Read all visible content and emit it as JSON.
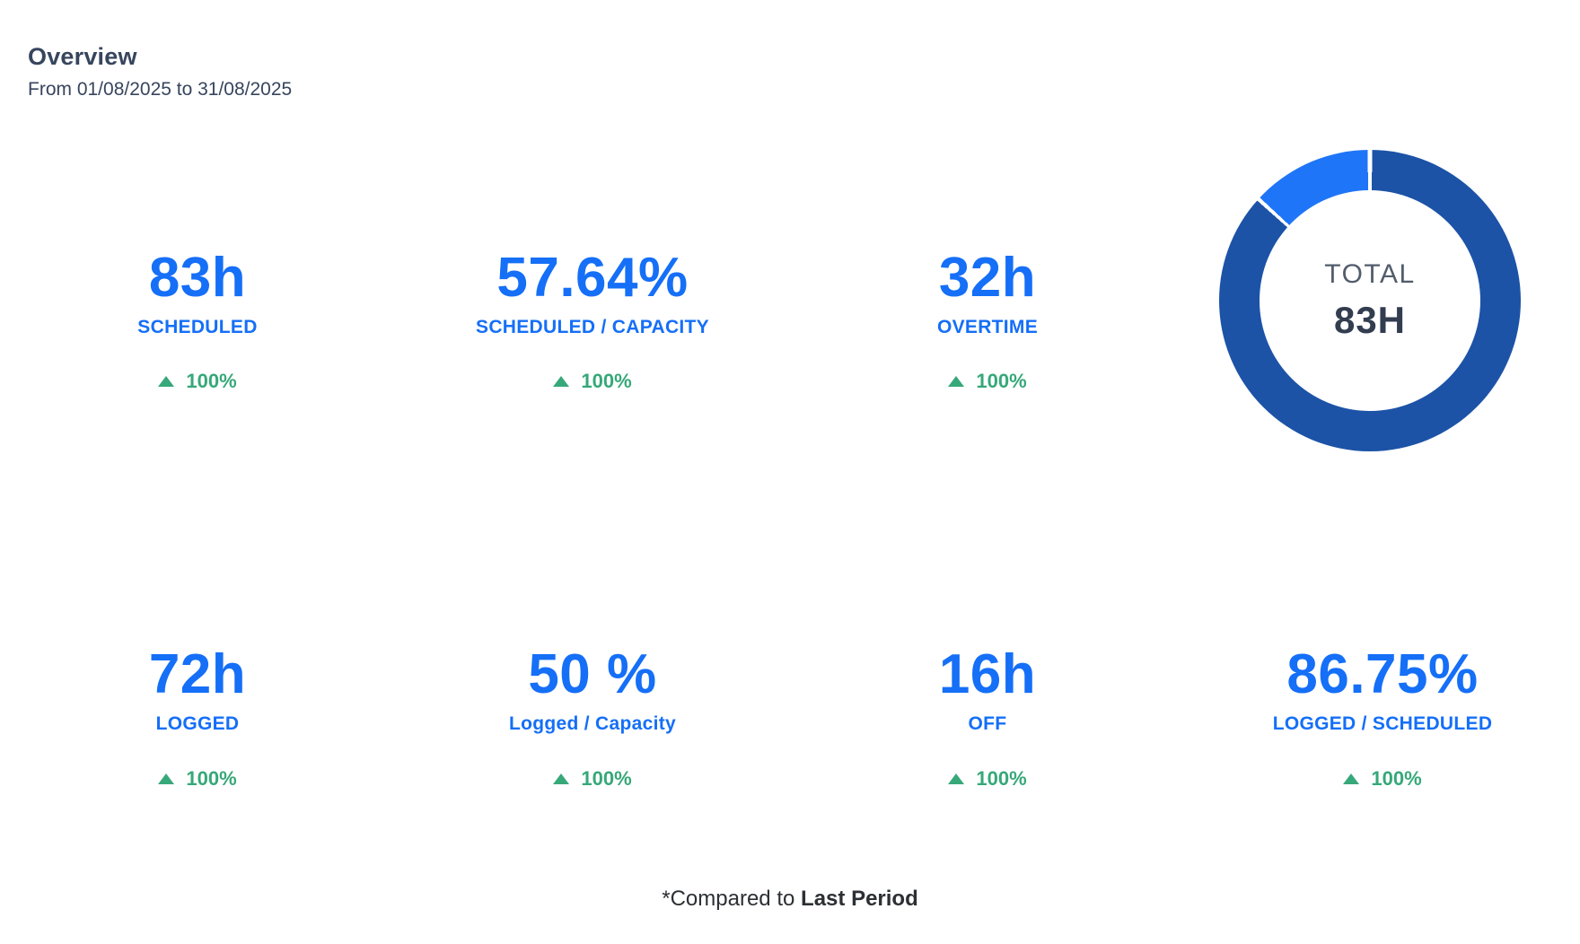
{
  "header": {
    "title": "Overview",
    "subtitle": "From 01/08/2025 to 31/08/2025"
  },
  "stats_row1": [
    {
      "value": "83h",
      "label": "SCHEDULED",
      "delta": "100%",
      "trend": "up"
    },
    {
      "value": "57.64%",
      "label": "SCHEDULED / CAPACITY",
      "delta": "100%",
      "trend": "up"
    },
    {
      "value": "32h",
      "label": "OVERTIME",
      "delta": "100%",
      "trend": "up"
    }
  ],
  "stats_row2": [
    {
      "value": "72h",
      "label": "LOGGED",
      "delta": "100%",
      "trend": "up"
    },
    {
      "value": "50 %",
      "label": "Logged / Capacity",
      "delta": "100%",
      "trend": "up"
    },
    {
      "value": "16h",
      "label": "OFF",
      "delta": "100%",
      "trend": "up"
    },
    {
      "value": "86.75%",
      "label": "LOGGED / SCHEDULED",
      "delta": "100%",
      "trend": "up"
    }
  ],
  "donut": {
    "center_label": "TOTAL",
    "center_value": "83H"
  },
  "footer": {
    "prefix": "*Compared to",
    "emphasis": "Last Period"
  },
  "icons": {
    "trend_up": "filled-triangle-up"
  },
  "colors": {
    "stat_blue": "#156ff7",
    "trend_green": "#36a879",
    "heading_navy": "#37455e",
    "donut_dark_blue": "#1c53a7",
    "donut_light_blue": "#1f75f7",
    "donut_center_label_gray": "#525c6b",
    "donut_center_value_dark": "#323d4f",
    "footnote_dark": "#2c2f33"
  },
  "chart_data": {
    "type": "pie",
    "title": "Total hours donut",
    "center_label": "TOTAL",
    "center_value": "83H",
    "total_hours": 83,
    "segments": [
      {
        "name": "segment-dark",
        "percent": 86.75,
        "color": "#1c53a7"
      },
      {
        "name": "segment-light",
        "percent": 13.25,
        "color": "#1f75f7"
      }
    ],
    "legend_position": "none"
  }
}
